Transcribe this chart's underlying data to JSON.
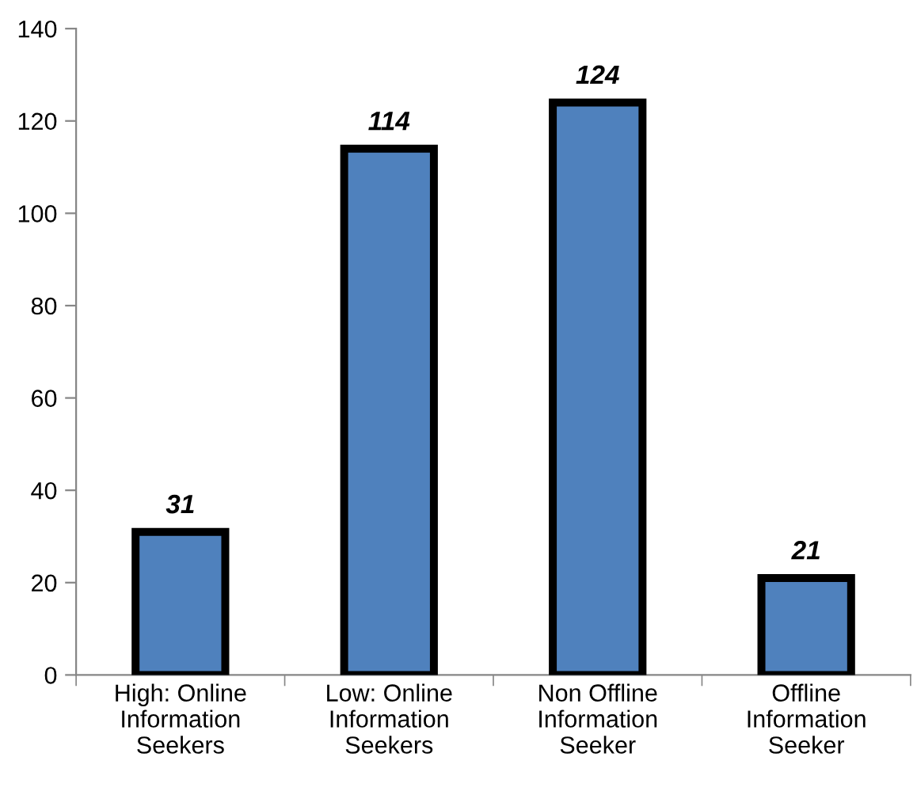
{
  "chart_data": {
    "type": "bar",
    "categories": [
      "High: Online\nInformation\nSeekers",
      "Low: Online\nInformation\nSeekers",
      "Non Offline\nInformation\nSeeker",
      "Offline\nInformation\nSeeker"
    ],
    "values": [
      31,
      114,
      124,
      21
    ],
    "color": "#4f81bd",
    "ylim": [
      0,
      140
    ],
    "yticks": [
      0,
      20,
      40,
      60,
      80,
      100,
      120,
      140
    ],
    "data_labels": true,
    "grid": false,
    "legend": false
  }
}
